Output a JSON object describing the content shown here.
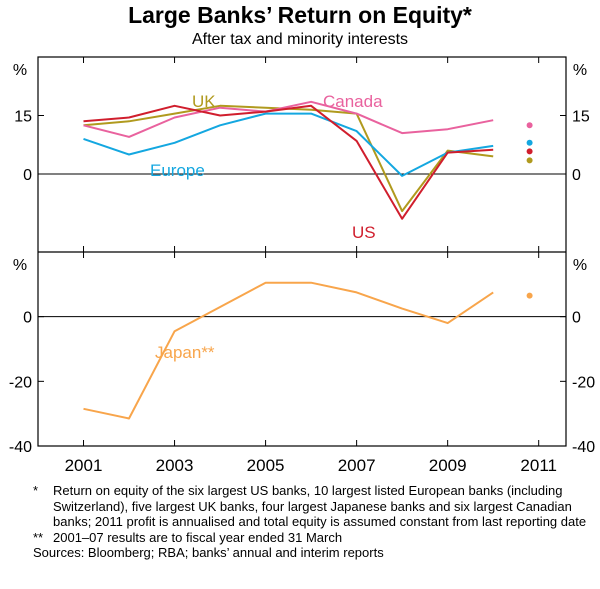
{
  "title": "Large Banks’ Return on Equity*",
  "subtitle": "After tax and minority interests",
  "chart_data": [
    {
      "type": "line",
      "panel": "top",
      "ylabel_left": "%",
      "ylabel_right": "%",
      "ylim": [
        -20,
        30
      ],
      "yticks": [
        0,
        15
      ],
      "ytick_labels": [
        "0",
        "15"
      ],
      "series": [
        {
          "name": "UK",
          "color": "#b09a1e",
          "x": [
            2001,
            2002,
            2003,
            2004,
            2005,
            2006,
            2007,
            2008,
            2009,
            2010
          ],
          "values": [
            12.5,
            13.5,
            15.5,
            17.5,
            17.0,
            16.5,
            15.5,
            -9.5,
            6.0,
            4.5
          ],
          "point_2011": 3.5
        },
        {
          "name": "Canada",
          "color": "#e9629e",
          "x": [
            2001,
            2002,
            2003,
            2004,
            2005,
            2006,
            2007,
            2008,
            2009,
            2010
          ],
          "values": [
            12.5,
            9.5,
            14.5,
            17.0,
            16.0,
            18.5,
            15.5,
            10.5,
            11.5,
            13.8
          ],
          "point_2011": 12.5
        },
        {
          "name": "Europe",
          "color": "#14a7e0",
          "x": [
            2001,
            2002,
            2003,
            2004,
            2005,
            2006,
            2007,
            2008,
            2009,
            2010
          ],
          "values": [
            9.0,
            5.0,
            8.0,
            12.5,
            15.5,
            15.5,
            11.0,
            -0.5,
            5.5,
            7.2
          ],
          "point_2011": 8.0
        },
        {
          "name": "US",
          "color": "#d01e2d",
          "x": [
            2001,
            2002,
            2003,
            2004,
            2005,
            2006,
            2007,
            2008,
            2009,
            2010
          ],
          "values": [
            13.5,
            14.5,
            17.5,
            15.0,
            16.0,
            17.5,
            8.5,
            -11.5,
            5.5,
            6.2
          ],
          "point_2011": 5.8
        }
      ]
    },
    {
      "type": "line",
      "panel": "bottom",
      "ylabel_left": "%",
      "ylabel_right": "%",
      "ylim": [
        -40,
        20
      ],
      "yticks": [
        0,
        -20,
        -40
      ],
      "ytick_labels": [
        "0",
        "-20",
        "-40"
      ],
      "series": [
        {
          "name": "Japan**",
          "color": "#f8a54b",
          "x": [
            2001,
            2002,
            2003,
            2004,
            2005,
            2006,
            2007,
            2008,
            2009,
            2010
          ],
          "values": [
            -28.5,
            -31.5,
            -4.5,
            3.0,
            10.5,
            10.5,
            7.5,
            2.5,
            -2.0,
            7.5
          ],
          "point_2011": 6.5
        }
      ]
    }
  ],
  "x_axis": {
    "range": [
      2000,
      2011.6
    ],
    "ticks": [
      2001,
      2003,
      2005,
      2007,
      2009,
      2011
    ],
    "tick_labels": [
      "2001",
      "2003",
      "2005",
      "2007",
      "2009",
      "2011"
    ]
  },
  "notes": [
    {
      "mark": "*",
      "text": "Return on equity of the six largest US banks, 10 largest listed European banks (including Switzerland), five largest UK banks, four largest Japanese banks and six largest Canadian banks; 2011 profit is annualised and total equity is assumed constant from last reporting date"
    },
    {
      "mark": "**",
      "text": "2001–07 results are to fiscal year ended 31 March"
    }
  ],
  "sources": "Sources: Bloomberg; RBA; banks’ annual and interim reports"
}
